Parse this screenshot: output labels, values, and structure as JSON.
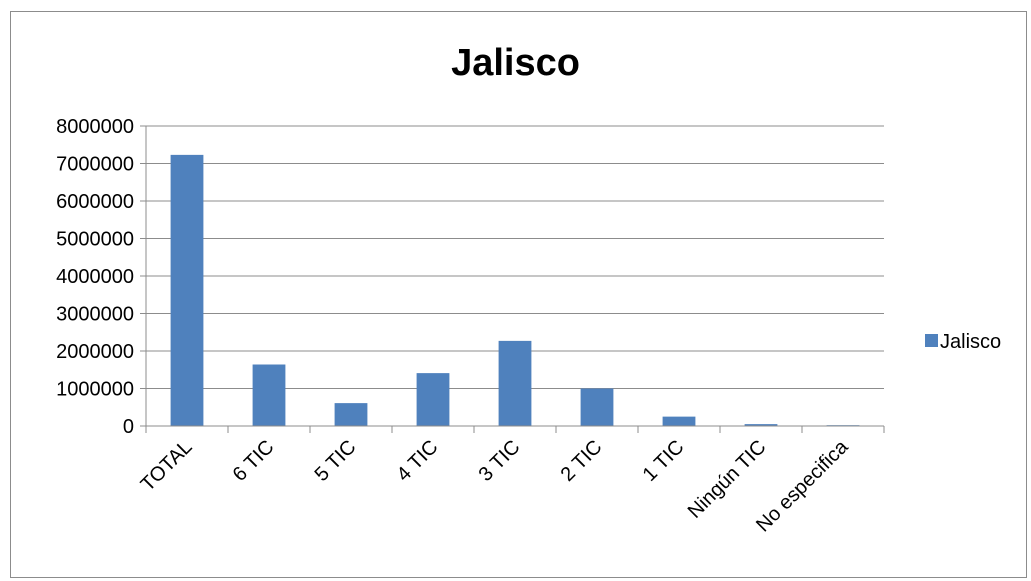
{
  "chart_data": {
    "type": "bar",
    "title": "Jalisco",
    "categories": [
      "TOTAL",
      "6 TIC",
      "5 TIC",
      "4 TIC",
      "3 TIC",
      "2 TIC",
      "1 TIC",
      "Ningún TIC",
      "No especifica"
    ],
    "series": [
      {
        "name": "Jalisco",
        "color": "#4f81bd",
        "values": [
          7230000,
          1640000,
          610000,
          1410000,
          2270000,
          1000000,
          250000,
          50000,
          10000
        ]
      }
    ],
    "ylim": [
      0,
      8000000
    ],
    "yticks": [
      "0",
      "1000000",
      "2000000",
      "3000000",
      "4000000",
      "5000000",
      "6000000",
      "7000000",
      "8000000"
    ],
    "grid": true,
    "legend_position": "right"
  }
}
